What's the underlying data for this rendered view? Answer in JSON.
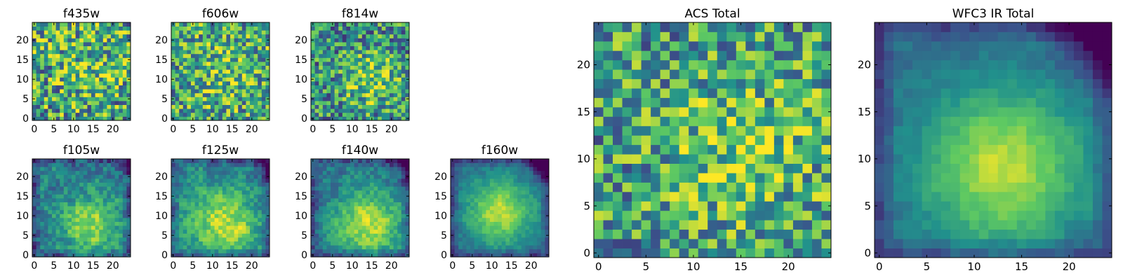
{
  "figure": {
    "colormap": "viridis",
    "cmap_colors": [
      "#440154",
      "#3b528b",
      "#21918c",
      "#5ec962",
      "#fde725"
    ]
  },
  "chart_data": [
    {
      "type": "heatmap",
      "title": "f435w",
      "grid": [
        25,
        25
      ],
      "xticks": [
        0,
        5,
        10,
        15,
        20
      ],
      "yticks": [
        0,
        5,
        10,
        15,
        20
      ],
      "pattern": "noise",
      "seed": 11,
      "noise": 0.42,
      "bright_center": [
        14,
        13
      ],
      "peak": 0.15,
      "sigma": 6,
      "dark_corner": 0,
      "base": 0.58
    },
    {
      "type": "heatmap",
      "title": "f606w",
      "grid": [
        25,
        25
      ],
      "xticks": [
        0,
        5,
        10,
        15,
        20
      ],
      "yticks": [
        0,
        5,
        10,
        15,
        20
      ],
      "pattern": "noise",
      "seed": 23,
      "noise": 0.38,
      "bright_center": [
        13,
        12
      ],
      "peak": 0.15,
      "sigma": 6,
      "dark_corner": 0,
      "base": 0.58
    },
    {
      "type": "heatmap",
      "title": "f814w",
      "grid": [
        25,
        25
      ],
      "xticks": [
        0,
        5,
        10,
        15,
        20
      ],
      "yticks": [
        0,
        5,
        10,
        15,
        20
      ],
      "pattern": "noise",
      "seed": 37,
      "noise": 0.36,
      "bright_center": [
        15,
        10
      ],
      "peak": 0.3,
      "sigma": 5,
      "dark_corner": 0,
      "base": 0.5
    },
    {
      "type": "heatmap",
      "title": "f105w",
      "grid": [
        25,
        25
      ],
      "xticks": [
        0,
        5,
        10,
        15,
        20
      ],
      "yticks": [
        0,
        5,
        10,
        15,
        20
      ],
      "pattern": "smooth",
      "seed": 41,
      "noise": 0.28,
      "bright_center": [
        14,
        8
      ],
      "peak": 0.45,
      "sigma": 5,
      "dark_corner": 0.25,
      "base": 0.42
    },
    {
      "type": "heatmap",
      "title": "f125w",
      "grid": [
        25,
        25
      ],
      "xticks": [
        0,
        5,
        10,
        15,
        20
      ],
      "yticks": [
        0,
        5,
        10,
        15,
        20
      ],
      "pattern": "smooth",
      "seed": 53,
      "noise": 0.25,
      "bright_center": [
        13,
        8
      ],
      "peak": 0.45,
      "sigma": 6,
      "dark_corner": 0.25,
      "base": 0.45
    },
    {
      "type": "heatmap",
      "title": "f140w",
      "grid": [
        25,
        25
      ],
      "xticks": [
        0,
        5,
        10,
        15,
        20
      ],
      "yticks": [
        0,
        5,
        10,
        15,
        20
      ],
      "pattern": "smooth",
      "seed": 67,
      "noise": 0.22,
      "bright_center": [
        14,
        8
      ],
      "peak": 0.5,
      "sigma": 6,
      "dark_corner": 0.35,
      "base": 0.4
    },
    {
      "type": "heatmap",
      "title": "f160w",
      "grid": [
        25,
        25
      ],
      "xticks": [
        0,
        5,
        10,
        15,
        20
      ],
      "yticks": [
        0,
        5,
        10,
        15,
        20
      ],
      "pattern": "smooth",
      "seed": 79,
      "noise": 0.14,
      "bright_center": [
        12,
        11
      ],
      "peak": 0.55,
      "sigma": 6,
      "dark_corner": 0.5,
      "base": 0.35
    },
    {
      "type": "heatmap",
      "title": "ACS Total",
      "grid": [
        25,
        25
      ],
      "xticks": [
        0,
        5,
        10,
        15,
        20
      ],
      "yticks": [
        0,
        5,
        10,
        15,
        20
      ],
      "pattern": "noise",
      "seed": 97,
      "noise": 0.36,
      "bright_center": [
        15,
        11
      ],
      "peak": 0.2,
      "sigma": 6,
      "dark_corner": 0,
      "base": 0.55
    },
    {
      "type": "heatmap",
      "title": "WFC3 IR Total",
      "grid": [
        25,
        25
      ],
      "xticks": [
        0,
        5,
        10,
        15,
        20
      ],
      "yticks": [
        0,
        5,
        10,
        15,
        20
      ],
      "pattern": "smooth",
      "seed": 113,
      "noise": 0.1,
      "bright_center": [
        13,
        9
      ],
      "peak": 0.55,
      "sigma": 6,
      "dark_corner": 0.55,
      "base": 0.35
    }
  ]
}
